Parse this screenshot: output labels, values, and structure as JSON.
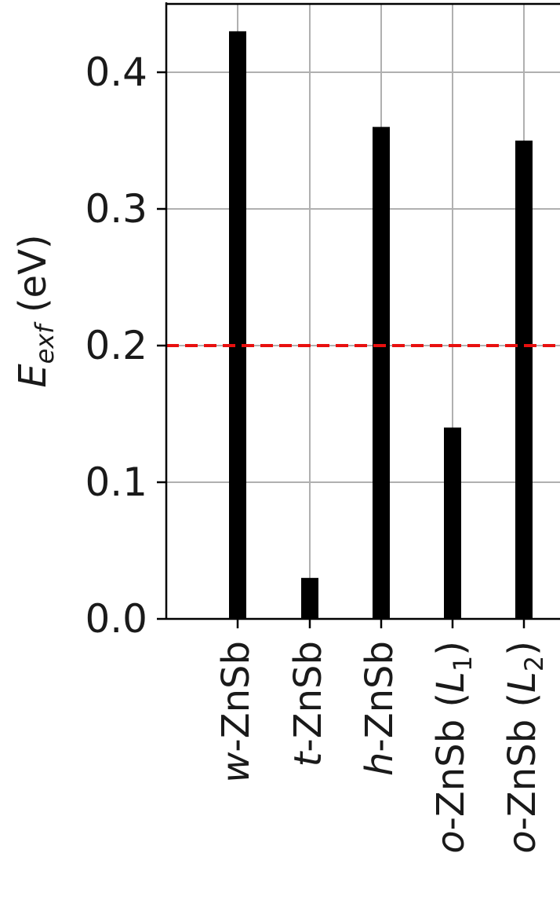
{
  "chart_data": {
    "type": "bar",
    "categories": [
      {
        "prefix": "w",
        "rest": "-ZnSb",
        "sub_label": "",
        "sub_index": ""
      },
      {
        "prefix": "t",
        "rest": "-ZnSb",
        "sub_label": "",
        "sub_index": ""
      },
      {
        "prefix": "h",
        "rest": "-ZnSb",
        "sub_label": "",
        "sub_index": ""
      },
      {
        "prefix": "o",
        "rest": "-ZnSb (",
        "sub_label": "L",
        "sub_index": "1"
      },
      {
        "prefix": "o",
        "rest": "-ZnSb (",
        "sub_label": "L",
        "sub_index": "2"
      }
    ],
    "values": [
      0.43,
      0.03,
      0.36,
      0.14,
      0.35
    ],
    "ylabel": {
      "main": "E",
      "sub": "exf",
      "unit": " (eV)"
    },
    "ylim": [
      0.0,
      0.45
    ],
    "yticks": [
      "0.0",
      "0.1",
      "0.2",
      "0.3",
      "0.4"
    ],
    "grid": true,
    "reference_line": {
      "y": 0.2,
      "color": "#e8100f",
      "style": "dashed"
    },
    "bar_color": "#000000"
  }
}
